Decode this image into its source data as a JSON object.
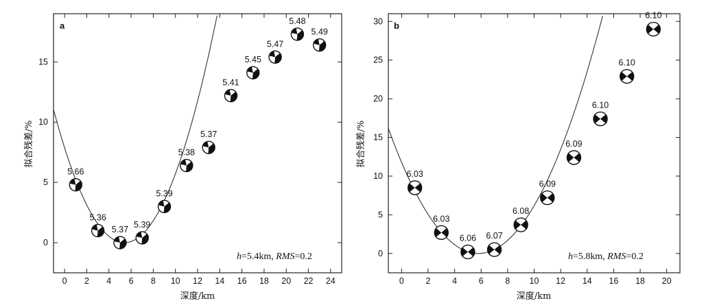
{
  "chart_data": [
    {
      "type": "scatter",
      "panel_label": "a",
      "xlabel": "深度/km",
      "ylabel": "拟合残差/%",
      "xlim": [
        -1,
        25
      ],
      "ylim": [
        -2.5,
        19
      ],
      "xticks": [
        0,
        2,
        4,
        6,
        8,
        10,
        12,
        14,
        16,
        18,
        20,
        22,
        24
      ],
      "yticks": [
        0,
        5,
        10,
        15
      ],
      "points": [
        {
          "x": 1,
          "y": 4.8,
          "magnitude": "5.66"
        },
        {
          "x": 3,
          "y": 1.0,
          "magnitude": "5.36"
        },
        {
          "x": 5,
          "y": 0.0,
          "magnitude": "5.37"
        },
        {
          "x": 7,
          "y": 0.4,
          "magnitude": "5.39"
        },
        {
          "x": 9,
          "y": 3.0,
          "magnitude": "5.39"
        },
        {
          "x": 11,
          "y": 6.4,
          "magnitude": "5.38"
        },
        {
          "x": 13,
          "y": 7.9,
          "magnitude": "5.37"
        },
        {
          "x": 15,
          "y": 12.2,
          "magnitude": "5.41"
        },
        {
          "x": 17,
          "y": 14.1,
          "magnitude": "5.45"
        },
        {
          "x": 19,
          "y": 15.4,
          "magnitude": "5.47"
        },
        {
          "x": 21,
          "y": 17.3,
          "magnitude": "5.48"
        },
        {
          "x": 23,
          "y": 16.4,
          "magnitude": "5.49"
        }
      ],
      "fit_curve": {
        "vertex_x": 5.4,
        "vertex_y": 0.0,
        "coef": 0.27
      },
      "annotation": {
        "h_label": "h",
        "h_value": "=5.4km, ",
        "rms_label": "RMS",
        "rms_value": "=0.2"
      }
    },
    {
      "type": "scatter",
      "panel_label": "b",
      "xlabel": "深度/km",
      "ylabel": "拟合残差/%",
      "xlim": [
        -1,
        21
      ],
      "ylim": [
        -2.5,
        31
      ],
      "xticks": [
        0,
        2,
        4,
        6,
        8,
        10,
        12,
        14,
        16,
        18,
        20
      ],
      "yticks": [
        0,
        5,
        10,
        15,
        20,
        25,
        30
      ],
      "points": [
        {
          "x": 1,
          "y": 8.5,
          "magnitude": "6.03"
        },
        {
          "x": 3,
          "y": 2.7,
          "magnitude": "6.03"
        },
        {
          "x": 5,
          "y": 0.2,
          "magnitude": "6.06"
        },
        {
          "x": 7,
          "y": 0.5,
          "magnitude": "6.07"
        },
        {
          "x": 9,
          "y": 3.7,
          "magnitude": "6.08"
        },
        {
          "x": 11,
          "y": 7.2,
          "magnitude": "6.09"
        },
        {
          "x": 13,
          "y": 12.4,
          "magnitude": "6.09"
        },
        {
          "x": 15,
          "y": 17.4,
          "magnitude": "6.10"
        },
        {
          "x": 17,
          "y": 22.9,
          "magnitude": "6.10"
        },
        {
          "x": 19,
          "y": 29.0,
          "magnitude": "6.10"
        }
      ],
      "fit_curve": {
        "vertex_x": 5.8,
        "vertex_y": 0.0,
        "coef": 0.35
      },
      "annotation": {
        "h_label": "h",
        "h_value": "=5.8km, ",
        "rms_label": "RMS",
        "rms_value": "=0.2"
      }
    }
  ]
}
